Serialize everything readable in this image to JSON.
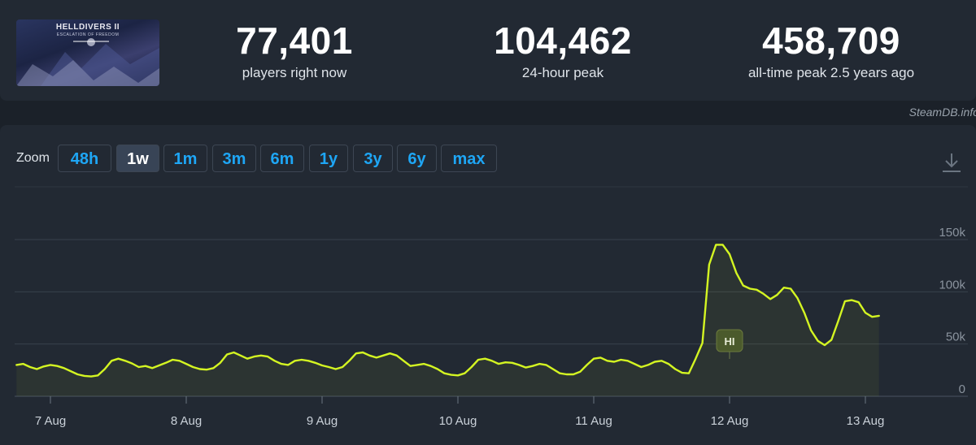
{
  "game": {
    "title": "HELLDIVERS II",
    "subtitle": "ESCALATION OF FREEDOM"
  },
  "stats": {
    "now": {
      "value": "77,401",
      "label": "players right now"
    },
    "peak24": {
      "value": "104,462",
      "label": "24-hour peak"
    },
    "alltime": {
      "value": "458,709",
      "label": "all-time peak 2.5 years ago"
    }
  },
  "credit": "SteamDB.info",
  "zoom": {
    "label": "Zoom",
    "buttons": [
      "48h",
      "1w",
      "1m",
      "3m",
      "6m",
      "1y",
      "3y",
      "6y",
      "max"
    ],
    "active": "1w"
  },
  "download_icon": "download-icon",
  "annotation": {
    "label": "HI",
    "x": "12 Aug 00:00"
  },
  "colors": {
    "line": "#d4f522",
    "accent": "#1ea6f5",
    "annotation_bg": "#4b5a2c"
  },
  "chart_data": {
    "type": "line",
    "series": [],
    "x_ticks": [
      "7 Aug",
      "8 Aug",
      "9 Aug",
      "10 Aug",
      "11 Aug",
      "12 Aug",
      "13 Aug"
    ],
    "y_ticks": [
      "0",
      "50k",
      "100k",
      "150k"
    ],
    "ylim": [
      0,
      150000
    ],
    "grid": true,
    "x_start": "6 Aug 18:00",
    "x_end": "13 Aug 19:00",
    "points": [
      [
        -0.25,
        30000
      ],
      [
        -0.2,
        31000
      ],
      [
        -0.15,
        28000
      ],
      [
        -0.1,
        26000
      ],
      [
        -0.05,
        28500
      ],
      [
        0.0,
        30000
      ],
      [
        0.05,
        29000
      ],
      [
        0.1,
        27000
      ],
      [
        0.15,
        24000
      ],
      [
        0.2,
        21000
      ],
      [
        0.25,
        19500
      ],
      [
        0.3,
        19000
      ],
      [
        0.35,
        20000
      ],
      [
        0.4,
        26000
      ],
      [
        0.45,
        34000
      ],
      [
        0.5,
        36000
      ],
      [
        0.55,
        34000
      ],
      [
        0.6,
        31500
      ],
      [
        0.65,
        28000
      ],
      [
        0.7,
        29000
      ],
      [
        0.75,
        27000
      ],
      [
        0.8,
        29500
      ],
      [
        0.85,
        32000
      ],
      [
        0.9,
        35000
      ],
      [
        0.95,
        34000
      ],
      [
        1.0,
        31000
      ],
      [
        1.05,
        28000
      ],
      [
        1.1,
        26000
      ],
      [
        1.15,
        25500
      ],
      [
        1.2,
        27000
      ],
      [
        1.25,
        32000
      ],
      [
        1.3,
        40000
      ],
      [
        1.35,
        42000
      ],
      [
        1.4,
        39000
      ],
      [
        1.45,
        36000
      ],
      [
        1.5,
        38000
      ],
      [
        1.55,
        39000
      ],
      [
        1.6,
        38000
      ],
      [
        1.65,
        34000
      ],
      [
        1.7,
        31000
      ],
      [
        1.75,
        30000
      ],
      [
        1.8,
        34000
      ],
      [
        1.85,
        35000
      ],
      [
        1.9,
        34000
      ],
      [
        1.95,
        32000
      ],
      [
        2.0,
        29500
      ],
      [
        2.05,
        28000
      ],
      [
        2.1,
        26000
      ],
      [
        2.15,
        28000
      ],
      [
        2.2,
        34000
      ],
      [
        2.25,
        41000
      ],
      [
        2.3,
        42000
      ],
      [
        2.35,
        39000
      ],
      [
        2.4,
        37000
      ],
      [
        2.45,
        39000
      ],
      [
        2.5,
        41000
      ],
      [
        2.55,
        39000
      ],
      [
        2.6,
        34000
      ],
      [
        2.65,
        29000
      ],
      [
        2.7,
        30000
      ],
      [
        2.75,
        31000
      ],
      [
        2.8,
        29000
      ],
      [
        2.85,
        26000
      ],
      [
        2.9,
        22000
      ],
      [
        2.95,
        20500
      ],
      [
        3.0,
        20000
      ],
      [
        3.05,
        22000
      ],
      [
        3.1,
        28000
      ],
      [
        3.15,
        35000
      ],
      [
        3.2,
        36000
      ],
      [
        3.25,
        34000
      ],
      [
        3.3,
        31000
      ],
      [
        3.35,
        32500
      ],
      [
        3.4,
        32000
      ],
      [
        3.45,
        30000
      ],
      [
        3.5,
        27500
      ],
      [
        3.55,
        29000
      ],
      [
        3.6,
        31000
      ],
      [
        3.65,
        30000
      ],
      [
        3.7,
        26000
      ],
      [
        3.75,
        22000
      ],
      [
        3.8,
        21000
      ],
      [
        3.85,
        21000
      ],
      [
        3.9,
        23500
      ],
      [
        3.95,
        30000
      ],
      [
        4.0,
        36000
      ],
      [
        4.05,
        37000
      ],
      [
        4.1,
        34000
      ],
      [
        4.15,
        33000
      ],
      [
        4.2,
        35000
      ],
      [
        4.25,
        34000
      ],
      [
        4.3,
        31000
      ],
      [
        4.35,
        28000
      ],
      [
        4.4,
        30000
      ],
      [
        4.45,
        33000
      ],
      [
        4.5,
        34000
      ],
      [
        4.55,
        31000
      ],
      [
        4.6,
        26000
      ],
      [
        4.65,
        22500
      ],
      [
        4.7,
        22000
      ],
      [
        4.75,
        36000
      ],
      [
        4.8,
        51000
      ],
      [
        4.85,
        126000
      ],
      [
        4.9,
        145000
      ],
      [
        4.95,
        145000
      ],
      [
        5.0,
        136000
      ],
      [
        5.05,
        118000
      ],
      [
        5.1,
        106000
      ],
      [
        5.15,
        103000
      ],
      [
        5.2,
        102000
      ],
      [
        5.25,
        98000
      ],
      [
        5.3,
        93000
      ],
      [
        5.35,
        97000
      ],
      [
        5.4,
        104000
      ],
      [
        5.45,
        103000
      ],
      [
        5.5,
        94000
      ],
      [
        5.55,
        80000
      ],
      [
        5.6,
        63000
      ],
      [
        5.65,
        53000
      ],
      [
        5.7,
        49000
      ],
      [
        5.75,
        54000
      ],
      [
        5.8,
        72000
      ],
      [
        5.85,
        91000
      ],
      [
        5.9,
        92000
      ],
      [
        5.95,
        90000
      ],
      [
        6.0,
        80000
      ],
      [
        6.05,
        76000
      ],
      [
        6.1,
        77000
      ]
    ]
  }
}
